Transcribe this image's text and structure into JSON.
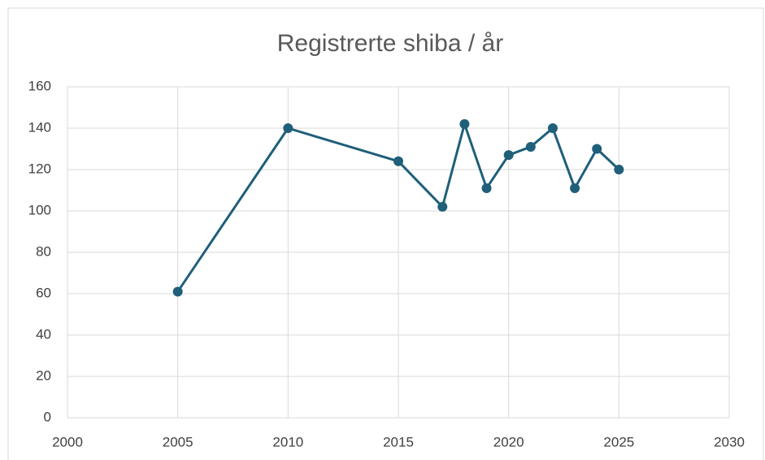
{
  "chart_data": {
    "type": "line",
    "title": "Registrerte shiba / år",
    "x": [
      2005,
      2010,
      2015,
      2017,
      2018,
      2019,
      2020,
      2021,
      2022,
      2023,
      2024,
      2025
    ],
    "series": [
      {
        "name": null,
        "color": "#1f5f7a",
        "values": [
          61,
          140,
          124,
          102,
          142,
          111,
          127,
          131,
          140,
          111,
          130,
          120
        ]
      }
    ],
    "xlim": [
      2000,
      2030
    ],
    "xticks": [
      2000,
      2005,
      2010,
      2015,
      2020,
      2025,
      2030
    ],
    "ylim": [
      0,
      160
    ],
    "yticks": [
      0,
      20,
      40,
      60,
      80,
      100,
      120,
      140,
      160
    ],
    "grid": true
  }
}
